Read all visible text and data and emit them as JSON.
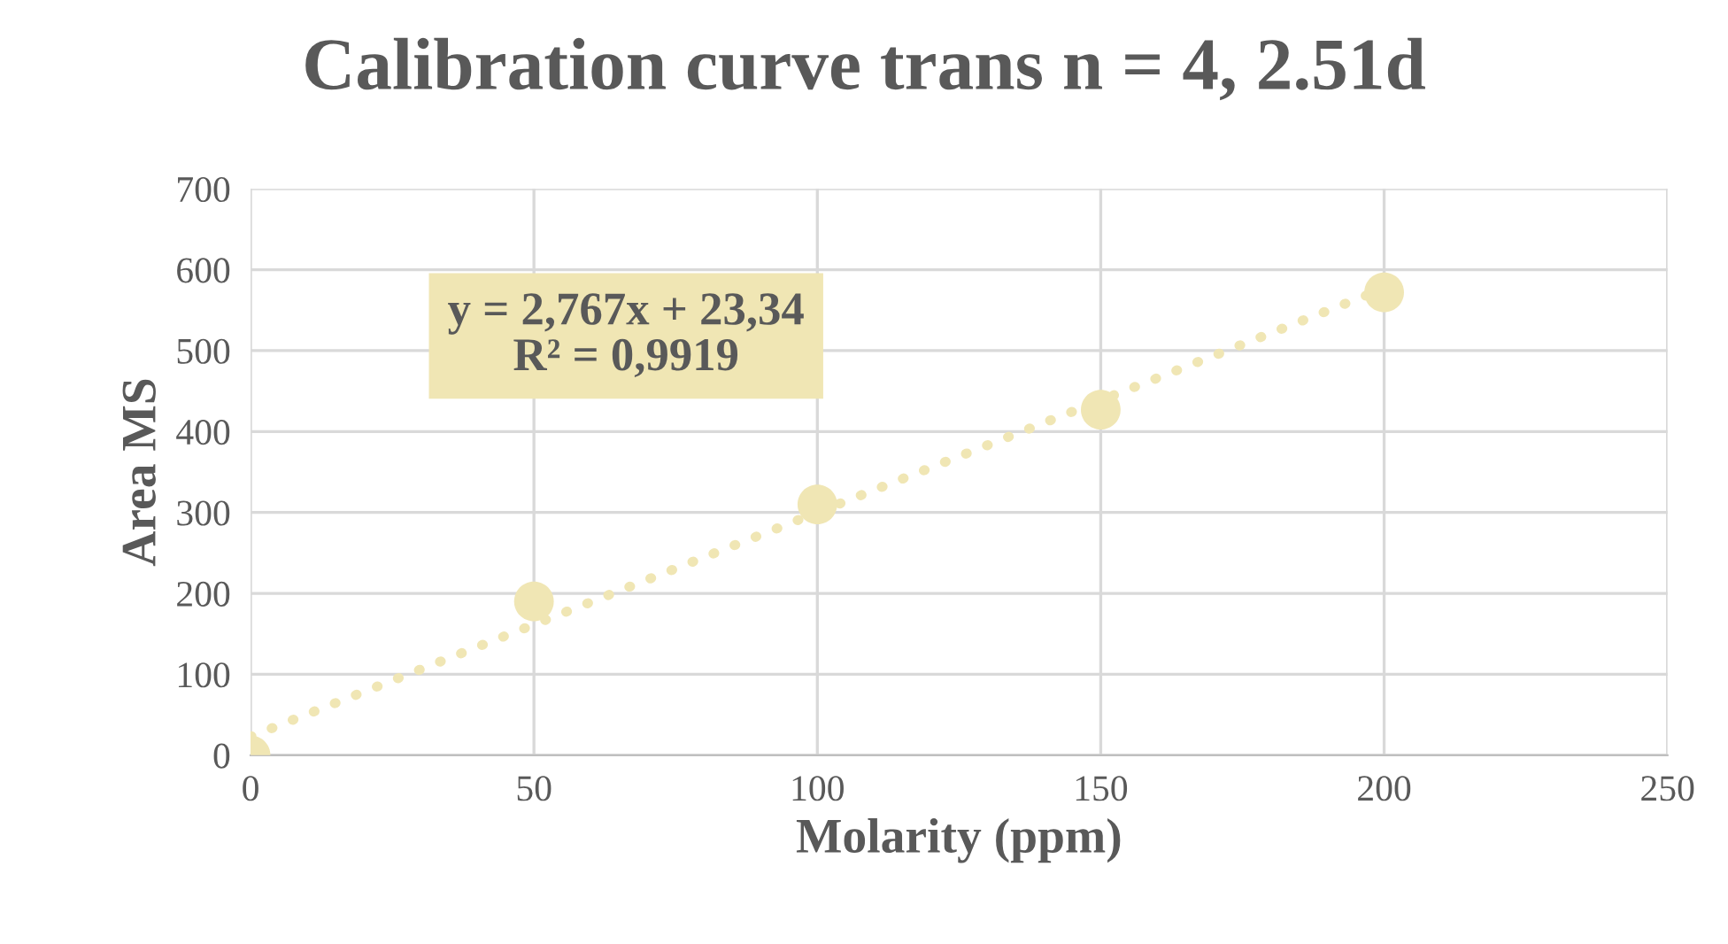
{
  "chart_data": {
    "type": "scatter",
    "title": "Calibration curve trans n = 4, 2.51d",
    "xlabel": "Molarity (ppm)",
    "ylabel": "Area MS",
    "x": [
      0,
      50,
      100,
      150,
      200
    ],
    "series": [
      {
        "color": "#f0e6b4",
        "values": [
          0,
          190,
          310,
          427,
          572
        ],
        "marker": "circle"
      },
      {
        "type": "line",
        "color": "#f0e6b4",
        "x": [
          0,
          200
        ],
        "values": [
          23,
          577
        ],
        "line_style": "dotted",
        "marker": "none"
      }
    ],
    "annotations": [
      "y = 2,767x + 23,34\nR² = 0,9919"
    ],
    "xlim": [
      0,
      250
    ],
    "xticks": [
      0,
      50,
      100,
      150,
      200,
      250
    ],
    "ylim": [
      0,
      700
    ],
    "yticks": [
      0,
      100,
      200,
      300,
      400,
      500,
      600,
      700
    ],
    "grid": true,
    "legend": false
  }
}
